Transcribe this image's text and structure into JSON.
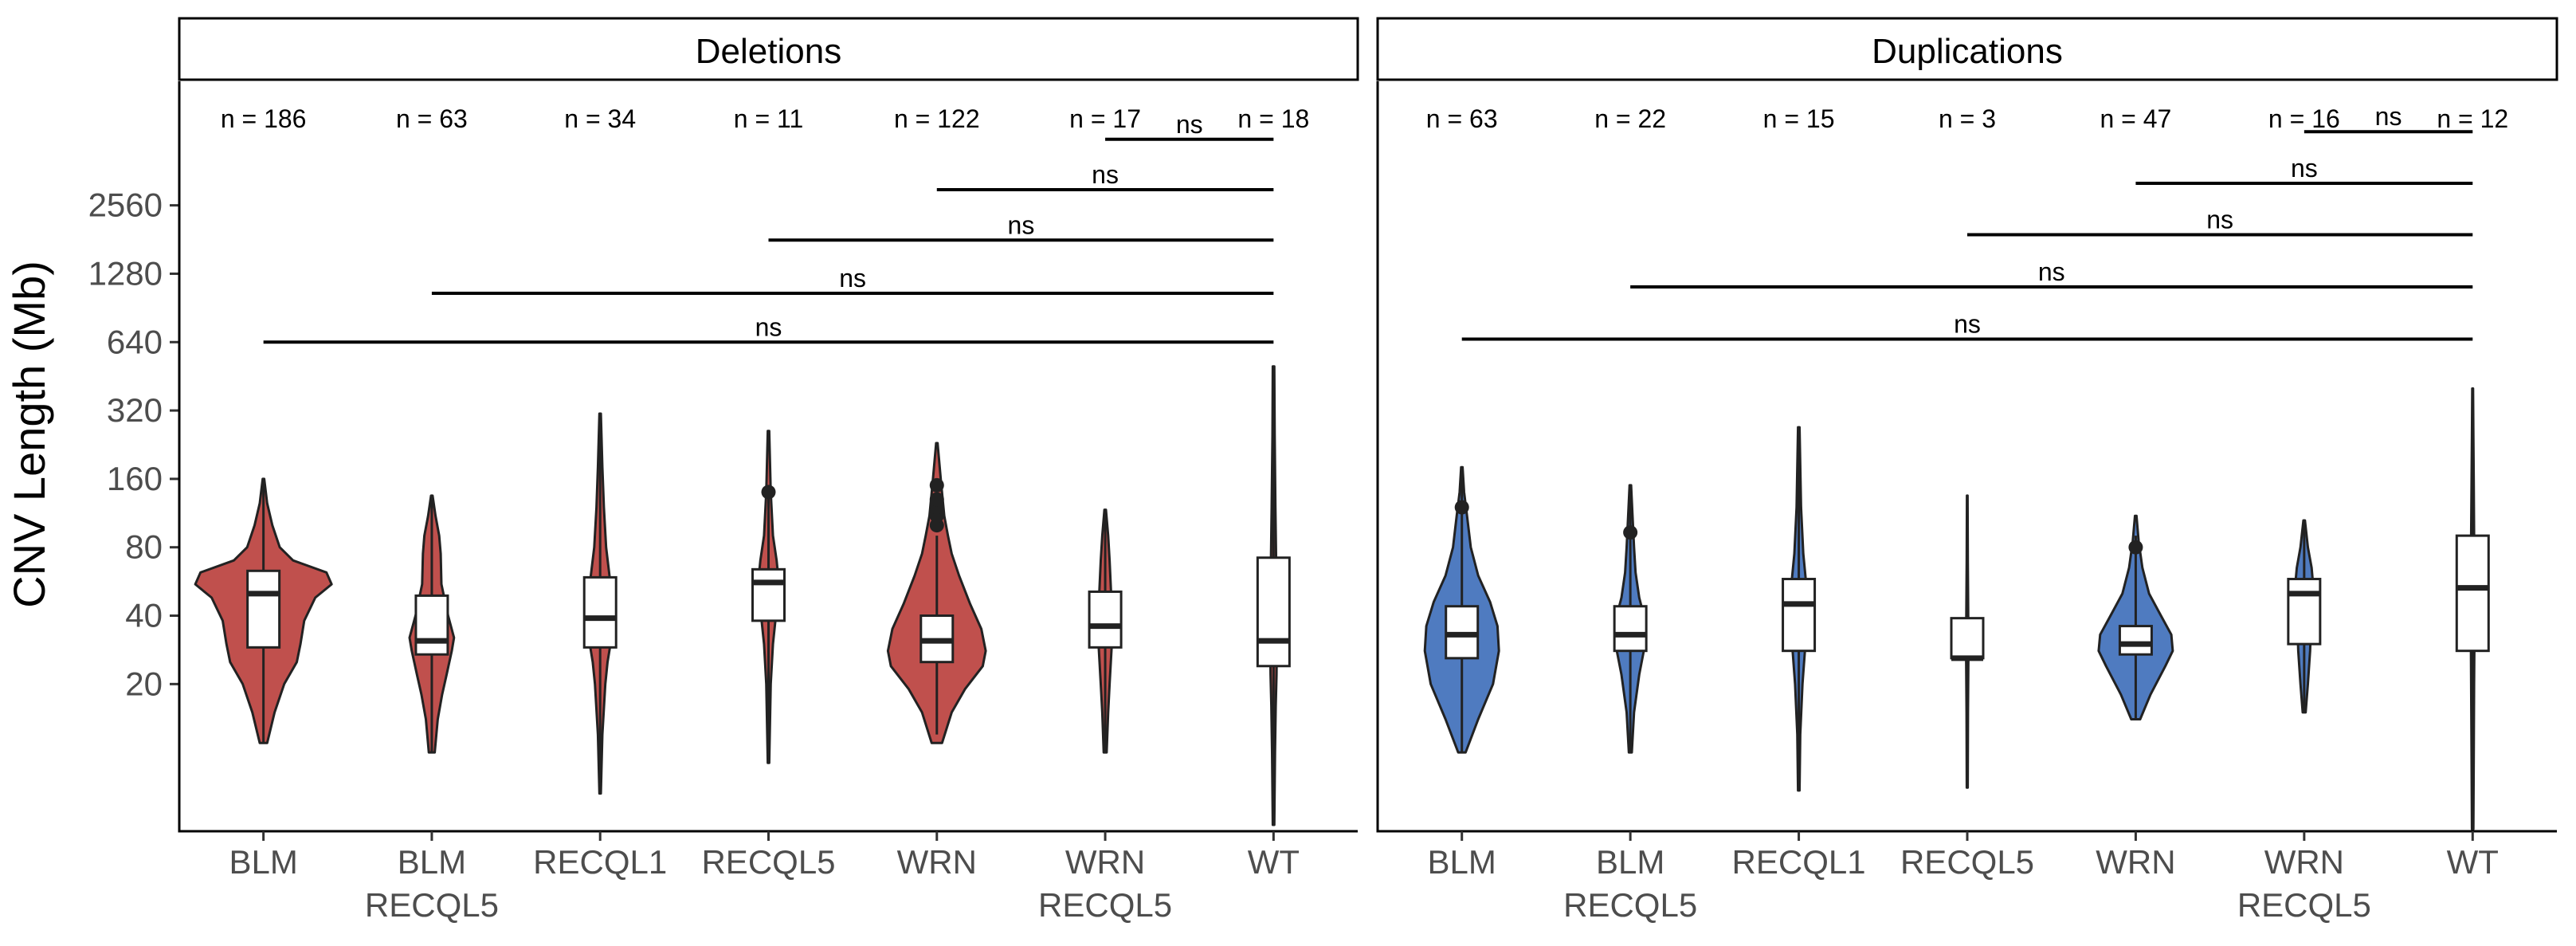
{
  "chart_data": {
    "type": "violin",
    "ylabel": "CNV Length (Mb)",
    "yscale": "log2",
    "ylim": [
      4.5,
      9000
    ],
    "yticks": [
      20,
      40,
      80,
      160,
      320,
      640,
      1280,
      2560
    ],
    "categories": [
      {
        "lines": [
          "BLM",
          ""
        ]
      },
      {
        "lines": [
          "BLM",
          "RECQL5"
        ]
      },
      {
        "lines": [
          "RECQL1",
          ""
        ]
      },
      {
        "lines": [
          "RECQL5",
          ""
        ]
      },
      {
        "lines": [
          "WRN",
          ""
        ]
      },
      {
        "lines": [
          "WRN",
          "RECQL5"
        ]
      },
      {
        "lines": [
          "WT",
          ""
        ]
      }
    ],
    "panels": [
      {
        "title": "Deletions",
        "color": "#c0504d",
        "counts": [
          "n = 186",
          "n = 63",
          "n = 34",
          "n = 11",
          "n = 122",
          "n = 17",
          "n = 18"
        ],
        "groups": [
          {
            "min": 11,
            "q1": 29,
            "median": 50,
            "q3": 63,
            "max": 160,
            "outliers": [],
            "violin": [
              [
                11,
                0.05
              ],
              [
                15,
                0.15
              ],
              [
                20,
                0.28
              ],
              [
                25,
                0.45
              ],
              [
                30,
                0.5
              ],
              [
                38,
                0.55
              ],
              [
                48,
                0.7
              ],
              [
                55,
                0.92
              ],
              [
                62,
                0.85
              ],
              [
                70,
                0.4
              ],
              [
                80,
                0.22
              ],
              [
                100,
                0.12
              ],
              [
                125,
                0.05
              ],
              [
                160,
                0.01
              ]
            ]
          },
          {
            "min": 10,
            "q1": 27,
            "median": 31,
            "q3": 49,
            "max": 135,
            "outliers": [],
            "violin": [
              [
                10,
                0.04
              ],
              [
                14,
                0.08
              ],
              [
                18,
                0.14
              ],
              [
                22,
                0.2
              ],
              [
                28,
                0.27
              ],
              [
                32,
                0.3
              ],
              [
                40,
                0.22
              ],
              [
                55,
                0.13
              ],
              [
                75,
                0.12
              ],
              [
                90,
                0.1
              ],
              [
                110,
                0.05
              ],
              [
                135,
                0.01
              ]
            ]
          },
          {
            "min": 6.6,
            "q1": 29,
            "median": 39,
            "q3": 59,
            "max": 310,
            "outliers": [],
            "violin": [
              [
                6.6,
                0.01
              ],
              [
                12,
                0.03
              ],
              [
                20,
                0.07
              ],
              [
                25,
                0.1
              ],
              [
                30,
                0.14
              ],
              [
                40,
                0.18
              ],
              [
                55,
                0.14
              ],
              [
                80,
                0.08
              ],
              [
                120,
                0.05
              ],
              [
                180,
                0.03
              ],
              [
                310,
                0.01
              ]
            ]
          },
          {
            "min": 9,
            "q1": 38,
            "median": 56,
            "q3": 64,
            "max": 140,
            "outliers": [
              140
            ],
            "violin": [
              [
                9,
                0.01
              ],
              [
                20,
                0.03
              ],
              [
                30,
                0.06
              ],
              [
                40,
                0.1
              ],
              [
                50,
                0.12
              ],
              [
                60,
                0.13
              ],
              [
                70,
                0.11
              ],
              [
                90,
                0.06
              ],
              [
                140,
                0.03
              ],
              [
                260,
                0.01
              ]
            ]
          },
          {
            "min": 12,
            "q1": 25,
            "median": 31,
            "q3": 40,
            "max": 90,
            "outliers": [
              100,
              110,
              120,
              130,
              150
            ],
            "violin": [
              [
                11,
                0.07
              ],
              [
                15,
                0.2
              ],
              [
                19,
                0.38
              ],
              [
                24,
                0.62
              ],
              [
                28,
                0.66
              ],
              [
                35,
                0.6
              ],
              [
                45,
                0.45
              ],
              [
                60,
                0.3
              ],
              [
                75,
                0.2
              ],
              [
                90,
                0.15
              ],
              [
                110,
                0.1
              ],
              [
                150,
                0.06
              ],
              [
                230,
                0.01
              ]
            ]
          },
          {
            "min": 10,
            "q1": 29,
            "median": 36,
            "q3": 51,
            "max": 117,
            "outliers": [],
            "violin": [
              [
                10,
                0.02
              ],
              [
                15,
                0.04
              ],
              [
                20,
                0.06
              ],
              [
                30,
                0.09
              ],
              [
                40,
                0.1
              ],
              [
                50,
                0.08
              ],
              [
                70,
                0.06
              ],
              [
                90,
                0.04
              ],
              [
                117,
                0.01
              ]
            ]
          },
          {
            "min": 4.8,
            "q1": 24,
            "median": 31,
            "q3": 72,
            "max": 500,
            "outliers": [],
            "violin": [
              [
                4.8,
                0.01
              ],
              [
                10,
                0.02
              ],
              [
                16,
                0.03
              ],
              [
                22,
                0.04
              ],
              [
                30,
                0.045
              ],
              [
                45,
                0.04
              ],
              [
                70,
                0.035
              ],
              [
                120,
                0.025
              ],
              [
                250,
                0.015
              ],
              [
                500,
                0.01
              ]
            ]
          }
        ],
        "comparisons": [
          {
            "from": "BLM",
            "to": "WT",
            "label": "ns",
            "y": 640
          },
          {
            "from": "BLM\nRECQL5",
            "to": "WT",
            "label": "ns",
            "y": 1050
          },
          {
            "from": "RECQL5",
            "to": "WT",
            "label": "ns",
            "y": 1800
          },
          {
            "from": "WRN",
            "to": "WT",
            "label": "ns",
            "y": 3000
          },
          {
            "from": "WRN\nRECQL5",
            "to": "WT",
            "label": "ns",
            "y": 5000
          }
        ]
      },
      {
        "title": "Duplications",
        "color": "#4f7bc0",
        "counts": [
          "n = 63",
          "n = 22",
          "n = 15",
          "n = 3",
          "n = 47",
          "n = 16",
          "n = 12"
        ],
        "groups": [
          {
            "min": 10,
            "q1": 26,
            "median": 33,
            "q3": 44,
            "max": 180,
            "outliers": [
              120
            ],
            "violin": [
              [
                10,
                0.05
              ],
              [
                14,
                0.22
              ],
              [
                20,
                0.42
              ],
              [
                28,
                0.5
              ],
              [
                36,
                0.48
              ],
              [
                46,
                0.38
              ],
              [
                60,
                0.22
              ],
              [
                80,
                0.12
              ],
              [
                110,
                0.07
              ],
              [
                140,
                0.03
              ],
              [
                180,
                0.01
              ]
            ]
          },
          {
            "min": 10,
            "q1": 28,
            "median": 33,
            "q3": 44,
            "max": 150,
            "outliers": [
              93
            ],
            "violin": [
              [
                10,
                0.02
              ],
              [
                15,
                0.05
              ],
              [
                22,
                0.12
              ],
              [
                30,
                0.2
              ],
              [
                38,
                0.2
              ],
              [
                48,
                0.12
              ],
              [
                62,
                0.07
              ],
              [
                80,
                0.05
              ],
              [
                110,
                0.03
              ],
              [
                150,
                0.01
              ]
            ]
          },
          {
            "min": 6.8,
            "q1": 28,
            "median": 45,
            "q3": 58,
            "max": 270,
            "outliers": [],
            "violin": [
              [
                6.8,
                0.01
              ],
              [
                12,
                0.02
              ],
              [
                20,
                0.05
              ],
              [
                30,
                0.09
              ],
              [
                42,
                0.11
              ],
              [
                55,
                0.1
              ],
              [
                75,
                0.06
              ],
              [
                120,
                0.03
              ],
              [
                270,
                0.01
              ]
            ]
          },
          {
            "min": 7,
            "q1": 26,
            "median": 26,
            "q3": 39,
            "max": 135,
            "outliers": [],
            "violin": [
              [
                7,
                0.006
              ],
              [
                15,
                0.01
              ],
              [
                26,
                0.015
              ],
              [
                40,
                0.013
              ],
              [
                70,
                0.008
              ],
              [
                135,
                0.004
              ]
            ]
          },
          {
            "min": 14,
            "q1": 27,
            "median": 30,
            "q3": 36,
            "max": 90,
            "outliers": [
              80
            ],
            "violin": [
              [
                14,
                0.06
              ],
              [
                18,
                0.2
              ],
              [
                24,
                0.4
              ],
              [
                28,
                0.5
              ],
              [
                33,
                0.48
              ],
              [
                40,
                0.34
              ],
              [
                50,
                0.18
              ],
              [
                65,
                0.09
              ],
              [
                85,
                0.04
              ],
              [
                110,
                0.01
              ]
            ]
          },
          {
            "min": 15,
            "q1": 30,
            "median": 50,
            "q3": 58,
            "max": 105,
            "outliers": [],
            "violin": [
              [
                15,
                0.02
              ],
              [
                20,
                0.05
              ],
              [
                28,
                0.08
              ],
              [
                35,
                0.09
              ],
              [
                45,
                0.11
              ],
              [
                55,
                0.12
              ],
              [
                65,
                0.1
              ],
              [
                80,
                0.05
              ],
              [
                105,
                0.01
              ]
            ]
          },
          {
            "min": 4.6,
            "q1": 28,
            "median": 53,
            "q3": 90,
            "max": 400,
            "outliers": [],
            "violin": [
              [
                4.6,
                0.01
              ],
              [
                10,
                0.015
              ],
              [
                20,
                0.02
              ],
              [
                35,
                0.025
              ],
              [
                55,
                0.025
              ],
              [
                90,
                0.02
              ],
              [
                150,
                0.015
              ],
              [
                250,
                0.01
              ],
              [
                400,
                0.005
              ]
            ]
          }
        ],
        "comparisons": [
          {
            "from": "BLM",
            "to": "WT",
            "label": "ns",
            "y": 660
          },
          {
            "from": "BLM\nRECQL5",
            "to": "WT",
            "label": "ns",
            "y": 1120
          },
          {
            "from": "RECQL5",
            "to": "WT",
            "label": "ns",
            "y": 1900
          },
          {
            "from": "WRN",
            "to": "WT",
            "label": "ns",
            "y": 3200
          },
          {
            "from": "WRN\nRECQL5",
            "to": "WT",
            "label": "ns",
            "y": 5400
          }
        ]
      }
    ]
  }
}
